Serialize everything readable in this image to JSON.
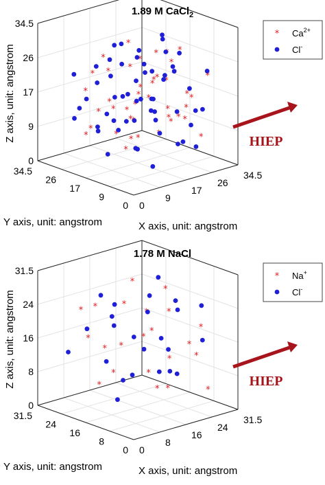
{
  "chart_data": [
    {
      "type": "scatter",
      "title_main": "1.89 M CaCl",
      "title_sub": "2",
      "xlabel": "X axis, unit: angstrom",
      "ylabel": "Y axis, unit: angstrom",
      "zlabel": "Z axis, unit: angstrom",
      "xlim": [
        0,
        34.5
      ],
      "ylim": [
        0,
        34.5
      ],
      "zlim": [
        0,
        34.5
      ],
      "xticks": [
        "0",
        "9",
        "17",
        "26",
        "34.5"
      ],
      "yticks": [
        "0",
        "9",
        "17",
        "26",
        "34.5"
      ],
      "zticks": [
        "0",
        "9",
        "17",
        "26",
        "34.5"
      ],
      "grid": true,
      "legend_position": "top-right",
      "series": [
        {
          "name": "Ca",
          "sup": "2+",
          "marker": "asterisk",
          "color": "#e41a1c",
          "points": [
            [
              20,
              15,
              20
            ],
            [
              25,
              8,
              18
            ],
            [
              10,
              20,
              24
            ],
            [
              15,
              25,
              14
            ],
            [
              28,
              12,
              10
            ],
            [
              18,
              18,
              6
            ],
            [
              22,
              5,
              16
            ],
            [
              30,
              20,
              8
            ],
            [
              8,
              10,
              28
            ],
            [
              14,
              30,
              20
            ],
            [
              26,
              26,
              22
            ],
            [
              12,
              4,
              12
            ],
            [
              32,
              14,
              14
            ],
            [
              6,
              22,
              10
            ],
            [
              20,
              28,
              4
            ],
            [
              24,
              18,
              26
            ],
            [
              16,
              12,
              18
            ],
            [
              10,
              28,
              6
            ],
            [
              30,
              6,
              22
            ],
            [
              18,
              22,
              12
            ],
            [
              22,
              12,
              28
            ],
            [
              8,
              16,
              16
            ],
            [
              28,
              28,
              14
            ],
            [
              14,
              8,
              24
            ],
            [
              26,
              4,
              8
            ],
            [
              12,
              24,
              26
            ],
            [
              20,
              20,
              16
            ],
            [
              24,
              10,
              12
            ],
            [
              16,
              30,
              10
            ],
            [
              30,
              16,
              26
            ],
            [
              6,
              6,
              20
            ],
            [
              18,
              6,
              28
            ],
            [
              22,
              24,
              8
            ],
            [
              10,
              12,
              14
            ],
            [
              28,
              22,
              18
            ],
            [
              14,
              18,
              4
            ],
            [
              20,
              10,
              22
            ],
            [
              24,
              28,
              26
            ],
            [
              12,
              14,
              8
            ],
            [
              26,
              16,
              12
            ],
            [
              8,
              26,
              18
            ],
            [
              16,
              4,
              14
            ]
          ]
        },
        {
          "name": "Cl",
          "sup": "-",
          "marker": "circle",
          "color": "#1f1fd8",
          "points": [
            [
              18,
              8,
              30
            ],
            [
              28,
              14,
              26
            ],
            [
              6,
              28,
              22
            ],
            [
              24,
              22,
              20
            ],
            [
              12,
              6,
              20
            ],
            [
              32,
              24,
              16
            ],
            [
              10,
              18,
              12
            ],
            [
              20,
              30,
              18
            ],
            [
              26,
              6,
              14
            ],
            [
              14,
              14,
              28
            ],
            [
              30,
              30,
              10
            ],
            [
              8,
              8,
              8
            ],
            [
              22,
              16,
              10
            ],
            [
              16,
              26,
              24
            ],
            [
              4,
              14,
              16
            ],
            [
              28,
              8,
              4
            ],
            [
              12,
              30,
              14
            ],
            [
              24,
              12,
              24
            ],
            [
              18,
              24,
              28
            ],
            [
              30,
              18,
              20
            ],
            [
              6,
              20,
              26
            ],
            [
              20,
              4,
              8
            ],
            [
              14,
              22,
              16
            ],
            [
              26,
              28,
              6
            ],
            [
              10,
              10,
              24
            ],
            [
              32,
              10,
              12
            ],
            [
              16,
              16,
              4
            ],
            [
              22,
              26,
              14
            ],
            [
              8,
              30,
              10
            ],
            [
              28,
              20,
              28
            ],
            [
              18,
              12,
              14
            ],
            [
              12,
              26,
              8
            ],
            [
              24,
              6,
              20
            ],
            [
              20,
              18,
              24
            ],
            [
              6,
              12,
              12
            ],
            [
              30,
              26,
              18
            ],
            [
              14,
              4,
              26
            ],
            [
              26,
              22,
              10
            ],
            [
              10,
              24,
              20
            ],
            [
              22,
              8,
              6
            ],
            [
              16,
              20,
              10
            ],
            [
              28,
              4,
              24
            ],
            [
              8,
              18,
              4
            ],
            [
              20,
              26,
              22
            ],
            [
              12,
              12,
              18
            ],
            [
              24,
              30,
              12
            ],
            [
              18,
              4,
              16
            ],
            [
              30,
              12,
              8
            ],
            [
              10,
              4,
              4
            ],
            [
              26,
              18,
              30
            ],
            [
              14,
              28,
              6
            ],
            [
              22,
              22,
              26
            ],
            [
              6,
              26,
              14
            ],
            [
              16,
              8,
              10
            ],
            [
              28,
              24,
              12
            ],
            [
              12,
              20,
              30
            ]
          ]
        }
      ]
    },
    {
      "type": "scatter",
      "title_main": "1.78 M NaCl",
      "title_sub": "",
      "xlabel": "X axis, unit: angstrom",
      "ylabel": "Y axis, unit: angstrom",
      "zlabel": "Z axis, unit: angstrom",
      "xlim": [
        0,
        31.5
      ],
      "ylim": [
        0,
        31.5
      ],
      "zlim": [
        0,
        31.5
      ],
      "xticks": [
        "0",
        "8",
        "16",
        "24",
        "31.5"
      ],
      "yticks": [
        "0",
        "8",
        "16",
        "24",
        "31.5"
      ],
      "zticks": [
        "0",
        "8",
        "16",
        "24",
        "31.5"
      ],
      "grid": true,
      "legend_position": "top-right",
      "series": [
        {
          "name": "Na",
          "sup": "+",
          "marker": "asterisk",
          "color": "#e41a1c",
          "points": [
            [
              18,
              20,
              28
            ],
            [
              8,
              26,
              22
            ],
            [
              26,
              10,
              14
            ],
            [
              14,
              12,
              18
            ],
            [
              22,
              28,
              10
            ],
            [
              10,
              6,
              12
            ],
            [
              28,
              20,
              24
            ],
            [
              16,
              24,
              6
            ],
            [
              6,
              16,
              16
            ],
            [
              24,
              4,
              20
            ],
            [
              20,
              14,
              4
            ],
            [
              12,
              28,
              14
            ],
            [
              30,
              12,
              10
            ],
            [
              18,
              8,
              24
            ],
            [
              8,
              20,
              6
            ],
            [
              26,
              24,
              18
            ],
            [
              14,
              4,
              8
            ],
            [
              22,
              18,
              16
            ],
            [
              10,
              14,
              26
            ],
            [
              28,
              6,
              4
            ],
            [
              16,
              30,
              20
            ],
            [
              20,
              10,
              12
            ]
          ]
        },
        {
          "name": "Cl",
          "sup": "-",
          "marker": "circle",
          "color": "#1f1fd8",
          "points": [
            [
              20,
              8,
              26
            ],
            [
              28,
              16,
              20
            ],
            [
              8,
              24,
              18
            ],
            [
              16,
              14,
              14
            ],
            [
              24,
              26,
              12
            ],
            [
              12,
              4,
              20
            ],
            [
              30,
              28,
              16
            ],
            [
              18,
              20,
              6
            ],
            [
              6,
              10,
              10
            ],
            [
              26,
              6,
              24
            ],
            [
              14,
              26,
              24
            ],
            [
              22,
              12,
              8
            ],
            [
              10,
              18,
              22
            ],
            [
              28,
              22,
              4
            ],
            [
              16,
              6,
              16
            ],
            [
              20,
              28,
              20
            ],
            [
              8,
              14,
              4
            ],
            [
              24,
              18,
              28
            ],
            [
              12,
              22,
              10
            ],
            [
              30,
              10,
              14
            ],
            [
              18,
              26,
              16
            ],
            [
              14,
              10,
              28
            ],
            [
              26,
              14,
              6
            ],
            [
              6,
              28,
              12
            ]
          ]
        }
      ]
    }
  ],
  "annotations": {
    "arrow_label": "HIEP",
    "arrow_color": "#a8141b"
  }
}
